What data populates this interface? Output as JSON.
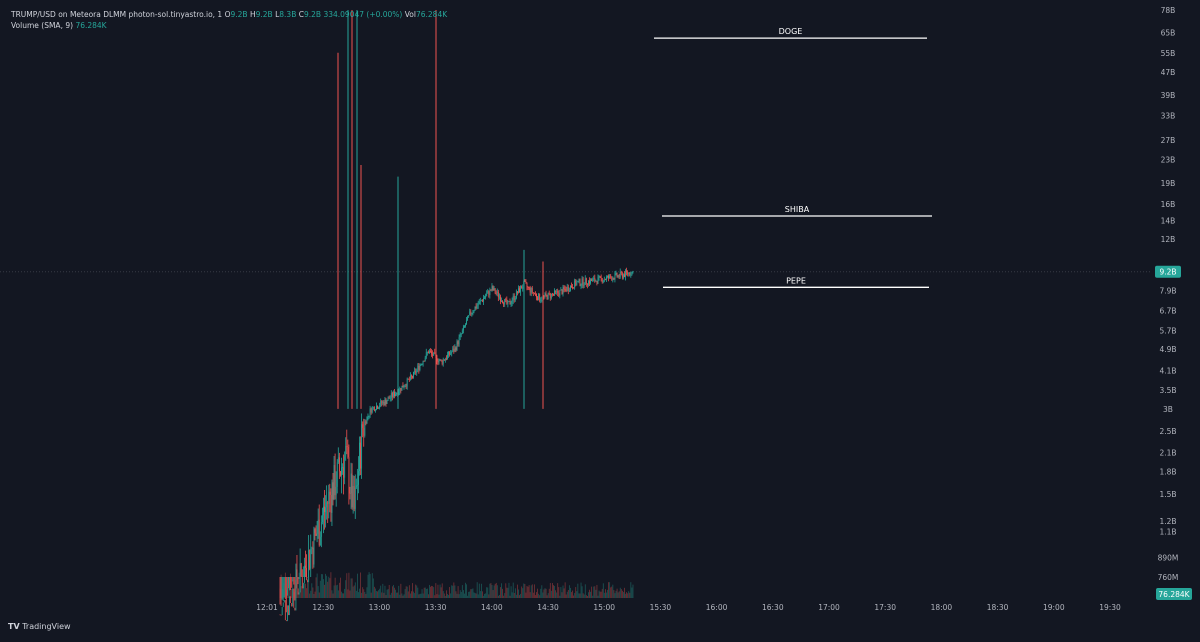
{
  "header": {
    "symbol_line": "TRUMP/USD on Meteora DLMM photon-sol.tinyastro.io, 1",
    "o_label": "O",
    "o_value": "9.2B",
    "h_label": "H",
    "h_value": "9.2B",
    "l_label": "L",
    "l_value": "8.3B",
    "c_label": "C",
    "c_value": "9.2B",
    "change": "334.09047 (+0.00%)",
    "vol_label": "Vol",
    "vol_value": "76.284K",
    "volume_line": "Volume (SMA, 9)",
    "volume_value": "76.284K"
  },
  "footer": {
    "logo_text": "TradingView"
  },
  "colors": {
    "bg": "#131722",
    "up": "#26a69a",
    "down": "#ef5350",
    "axis_text": "#b2b5be",
    "label_bg": "#26a69a"
  },
  "chart_data": {
    "type": "candlestick",
    "y_scale": "log",
    "y_ticks": [
      "78B",
      "65B",
      "55B",
      "47B",
      "39B",
      "33B",
      "27B",
      "23B",
      "19B",
      "16B",
      "14B",
      "12B",
      "9.2B",
      "7.9B",
      "6.7B",
      "5.7B",
      "4.9B",
      "4.1B",
      "3.5B",
      "3B",
      "2.5B",
      "2.1B",
      "1.8B",
      "1.5B",
      "1.2B",
      "1.1B",
      "890M",
      "760M"
    ],
    "x_ticks": [
      "12:01",
      "12:30",
      "13:00",
      "13:30",
      "14:00",
      "14:30",
      "15:00",
      "15:30",
      "16:00",
      "16:30",
      "17:00",
      "17:30",
      "18:00",
      "18:30",
      "19:00",
      "19:30"
    ],
    "last_price_label": "9.2B",
    "last_volume_label": "76.284K",
    "annotations": [
      {
        "label": "DOGE",
        "value": "62B"
      },
      {
        "label": "SHIBA",
        "value": "14.5B"
      },
      {
        "label": "PEPE",
        "value": "8.1B"
      }
    ]
  }
}
